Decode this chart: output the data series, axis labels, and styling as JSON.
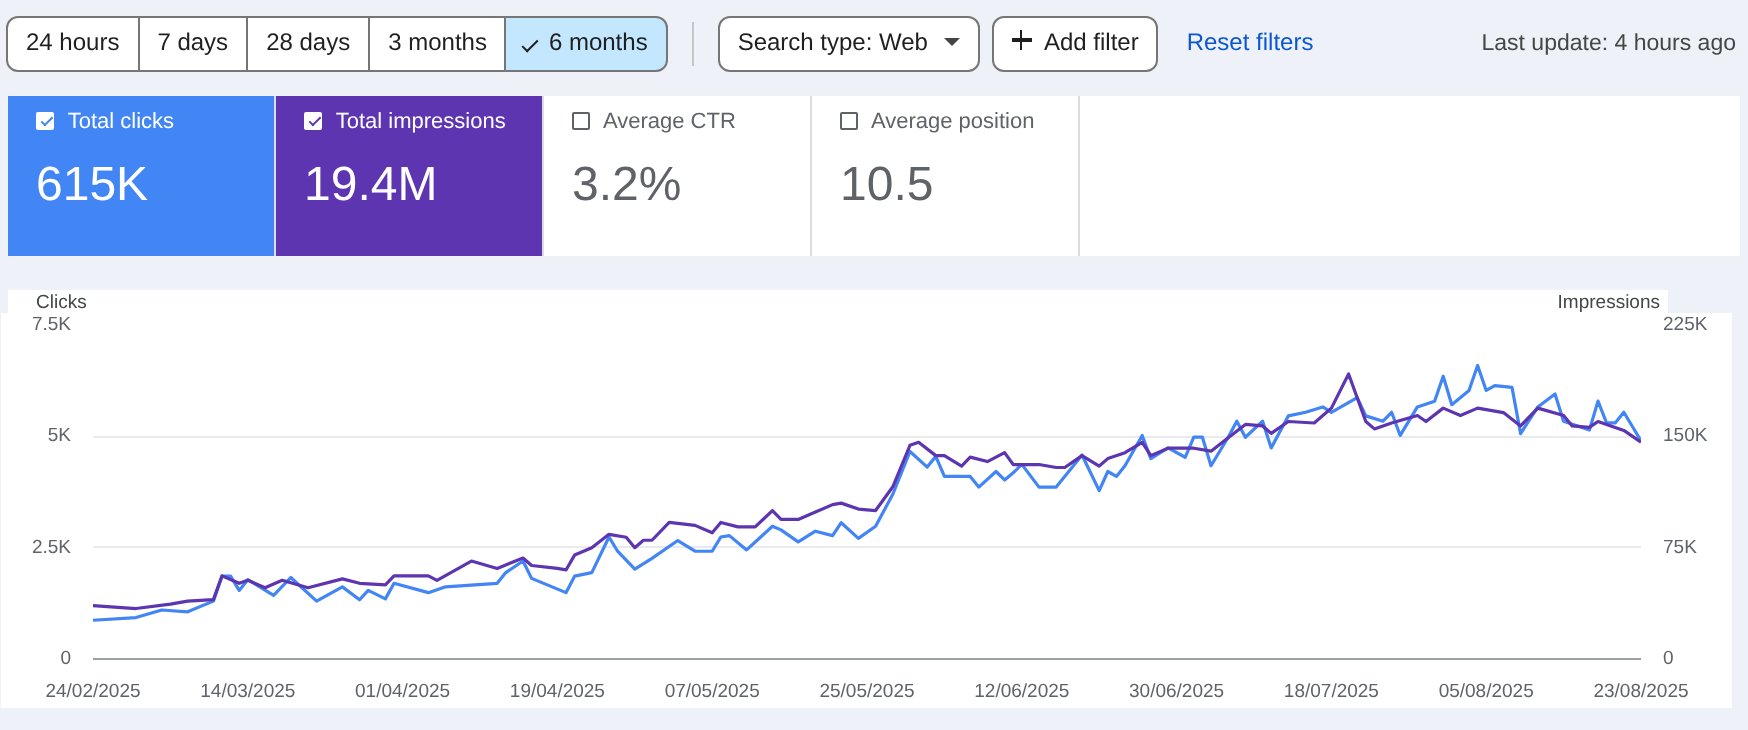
{
  "chart_data": {
    "type": "line",
    "ylabel": "Clicks",
    "y2label": "Impressions",
    "annotations": [
      "24 hours",
      "7 days",
      "28 days",
      "3 months",
      "6 months",
      "Search type: Web",
      "Add filter",
      "Reset filters",
      "Last update: 4 hours ago",
      "615K",
      "19.4M",
      "Average CTR",
      "3.2%",
      "Average position",
      "10.5"
    ],
    "xlim": [
      "2025-02-24",
      "2025-08-23"
    ],
    "xticks": [
      {
        "value": "2025-02-24",
        "label": "24/02/2025"
      },
      {
        "value": "2025-03-14",
        "label": "14/03/2025"
      },
      {
        "value": "2025-04-01",
        "label": "01/04/2025"
      },
      {
        "value": "2025-04-19",
        "label": "19/04/2025"
      },
      {
        "value": "2025-05-07",
        "label": "07/05/2025"
      },
      {
        "value": "2025-05-25",
        "label": "25/05/2025"
      },
      {
        "value": "2025-06-12",
        "label": "12/06/2025"
      },
      {
        "value": "2025-06-30",
        "label": "30/06/2025"
      },
      {
        "value": "2025-07-18",
        "label": "18/07/2025"
      },
      {
        "value": "2025-08-05",
        "label": "05/08/2025"
      },
      {
        "value": "2025-08-23",
        "label": "23/08/2025"
      }
    ],
    "ylim": [
      0,
      7500
    ],
    "yticks": [
      0,
      {
        "value": 2500,
        "label": "2.5K"
      },
      {
        "value": 5000,
        "label": "5K"
      },
      {
        "value": 7500,
        "label": "7.5K"
      }
    ],
    "y2lim": [
      0,
      225000
    ],
    "y2ticks": [
      0,
      {
        "value": 75000,
        "label": "75K"
      },
      {
        "value": 150000,
        "label": "150K"
      },
      {
        "value": 225000,
        "label": "225K"
      }
    ],
    "grid": "y",
    "legend": "top left",
    "marker": "none",
    "line_style": "solid",
    "series": [
      {
        "name": "Total clicks",
        "color": "#4285f4",
        "x": [
          "2025-02-24",
          "2025-03-01",
          "2025-03-04",
          "2025-03-07",
          "2025-03-10",
          "2025-03-11",
          "2025-03-12",
          "2025-03-13",
          "2025-03-14",
          "2025-03-17",
          "2025-03-19",
          "2025-03-22",
          "2025-03-25",
          "2025-03-27",
          "2025-03-28",
          "2025-03-30",
          "2025-03-31",
          "2025-04-04",
          "2025-04-06",
          "2025-04-12",
          "2025-04-13",
          "2025-04-15",
          "2025-04-16",
          "2025-04-20",
          "2025-04-21",
          "2025-04-23",
          "2025-04-25",
          "2025-04-26",
          "2025-04-28",
          "2025-04-30",
          "2025-05-03",
          "2025-05-05",
          "2025-05-07",
          "2025-05-08",
          "2025-05-09",
          "2025-05-11",
          "2025-05-14",
          "2025-05-15",
          "2025-05-17",
          "2025-05-19",
          "2025-05-21",
          "2025-05-22",
          "2025-05-24",
          "2025-05-26",
          "2025-05-28",
          "2025-05-30",
          "2025-06-01",
          "2025-06-02",
          "2025-06-03",
          "2025-06-06",
          "2025-06-07",
          "2025-06-09",
          "2025-06-10",
          "2025-06-11",
          "2025-06-12",
          "2025-06-14",
          "2025-06-16",
          "2025-06-18",
          "2025-06-19",
          "2025-06-21",
          "2025-06-22",
          "2025-06-23",
          "2025-06-24",
          "2025-06-26",
          "2025-06-27",
          "2025-06-29",
          "2025-07-01",
          "2025-07-02",
          "2025-07-03",
          "2025-07-04",
          "2025-07-06",
          "2025-07-07",
          "2025-07-08",
          "2025-07-10",
          "2025-07-11",
          "2025-07-13",
          "2025-07-15",
          "2025-07-17",
          "2025-07-18",
          "2025-07-21",
          "2025-07-22",
          "2025-07-24",
          "2025-07-25",
          "2025-07-26",
          "2025-07-28",
          "2025-07-30",
          "2025-07-31",
          "2025-08-01",
          "2025-08-03",
          "2025-08-04",
          "2025-08-05",
          "2025-08-06",
          "2025-08-08",
          "2025-08-09",
          "2025-08-11",
          "2025-08-13",
          "2025-08-14",
          "2025-08-17",
          "2025-08-18",
          "2025-08-19",
          "2025-08-20",
          "2025-08-21",
          "2025-08-23"
        ],
        "values": [
          870,
          930,
          1100,
          1060,
          1300,
          1860,
          1860,
          1540,
          1780,
          1430,
          1830,
          1300,
          1620,
          1330,
          1540,
          1350,
          1700,
          1490,
          1620,
          1700,
          1940,
          2200,
          1810,
          1490,
          1860,
          1940,
          2740,
          2420,
          2020,
          2260,
          2660,
          2420,
          2420,
          2740,
          2770,
          2450,
          2980,
          2900,
          2630,
          2870,
          2770,
          3060,
          2710,
          2980,
          3700,
          4660,
          4310,
          4550,
          4100,
          4100,
          3860,
          4210,
          4020,
          4180,
          4370,
          3860,
          3860,
          4340,
          4580,
          3780,
          4210,
          4100,
          4340,
          5020,
          4500,
          4740,
          4530,
          4980,
          4980,
          4340,
          4980,
          5340,
          4980,
          5340,
          4740,
          5460,
          5540,
          5660,
          5540,
          5870,
          5460,
          5340,
          5540,
          5020,
          5660,
          5790,
          6350,
          5710,
          6030,
          6590,
          6030,
          6140,
          6100,
          5060,
          5660,
          5950,
          5340,
          5140,
          5790,
          5300,
          5300,
          5540,
          4900
        ]
      },
      {
        "name": "Total impressions",
        "color": "#5e35b1",
        "axis": "y2",
        "x": [
          "2025-02-24",
          "2025-03-01",
          "2025-03-05",
          "2025-03-07",
          "2025-03-10",
          "2025-03-11",
          "2025-03-13",
          "2025-03-14",
          "2025-03-16",
          "2025-03-18",
          "2025-03-21",
          "2025-03-25",
          "2025-03-27",
          "2025-03-30",
          "2025-03-31",
          "2025-04-04",
          "2025-04-05",
          "2025-04-09",
          "2025-04-12",
          "2025-04-15",
          "2025-04-16",
          "2025-04-19",
          "2025-04-20",
          "2025-04-21",
          "2025-04-23",
          "2025-04-25",
          "2025-04-27",
          "2025-04-28",
          "2025-04-29",
          "2025-04-30",
          "2025-05-02",
          "2025-05-05",
          "2025-05-07",
          "2025-05-08",
          "2025-05-10",
          "2025-05-12",
          "2025-05-14",
          "2025-05-15",
          "2025-05-17",
          "2025-05-19",
          "2025-05-21",
          "2025-05-22",
          "2025-05-24",
          "2025-05-26",
          "2025-05-28",
          "2025-05-30",
          "2025-05-31",
          "2025-06-02",
          "2025-06-03",
          "2025-06-05",
          "2025-06-06",
          "2025-06-08",
          "2025-06-10",
          "2025-06-11",
          "2025-06-14",
          "2025-06-16",
          "2025-06-17",
          "2025-06-19",
          "2025-06-21",
          "2025-06-22",
          "2025-06-24",
          "2025-06-26",
          "2025-06-27",
          "2025-06-29",
          "2025-07-02",
          "2025-07-04",
          "2025-07-06",
          "2025-07-08",
          "2025-07-10",
          "2025-07-11",
          "2025-07-13",
          "2025-07-16",
          "2025-07-18",
          "2025-07-20",
          "2025-07-22",
          "2025-07-23",
          "2025-07-25",
          "2025-07-28",
          "2025-07-29",
          "2025-07-31",
          "2025-08-02",
          "2025-08-04",
          "2025-08-07",
          "2025-08-09",
          "2025-08-11",
          "2025-08-14",
          "2025-08-15",
          "2025-08-17",
          "2025-08-18",
          "2025-08-21",
          "2025-08-23"
        ],
        "values": [
          36000,
          34000,
          37000,
          39000,
          40000,
          56000,
          51000,
          53000,
          48000,
          53000,
          48000,
          54000,
          51000,
          50000,
          56000,
          56000,
          53000,
          66000,
          61000,
          68000,
          63000,
          61000,
          60000,
          70000,
          75000,
          84000,
          82000,
          75000,
          80000,
          80000,
          92000,
          90000,
          85000,
          92000,
          89000,
          89000,
          100000,
          94000,
          94000,
          99000,
          104000,
          105000,
          101000,
          100000,
          116000,
          144000,
          146000,
          137000,
          137000,
          130000,
          136000,
          133000,
          139000,
          131000,
          131000,
          129000,
          129000,
          137000,
          130000,
          135000,
          139000,
          146000,
          137000,
          142000,
          142000,
          140000,
          149000,
          158000,
          157000,
          152000,
          160000,
          159000,
          169000,
          192000,
          160000,
          155000,
          159000,
          164000,
          160000,
          169000,
          164000,
          169000,
          166000,
          157000,
          169000,
          164000,
          157000,
          156000,
          160000,
          154000,
          146000
        ]
      }
    ]
  }
}
